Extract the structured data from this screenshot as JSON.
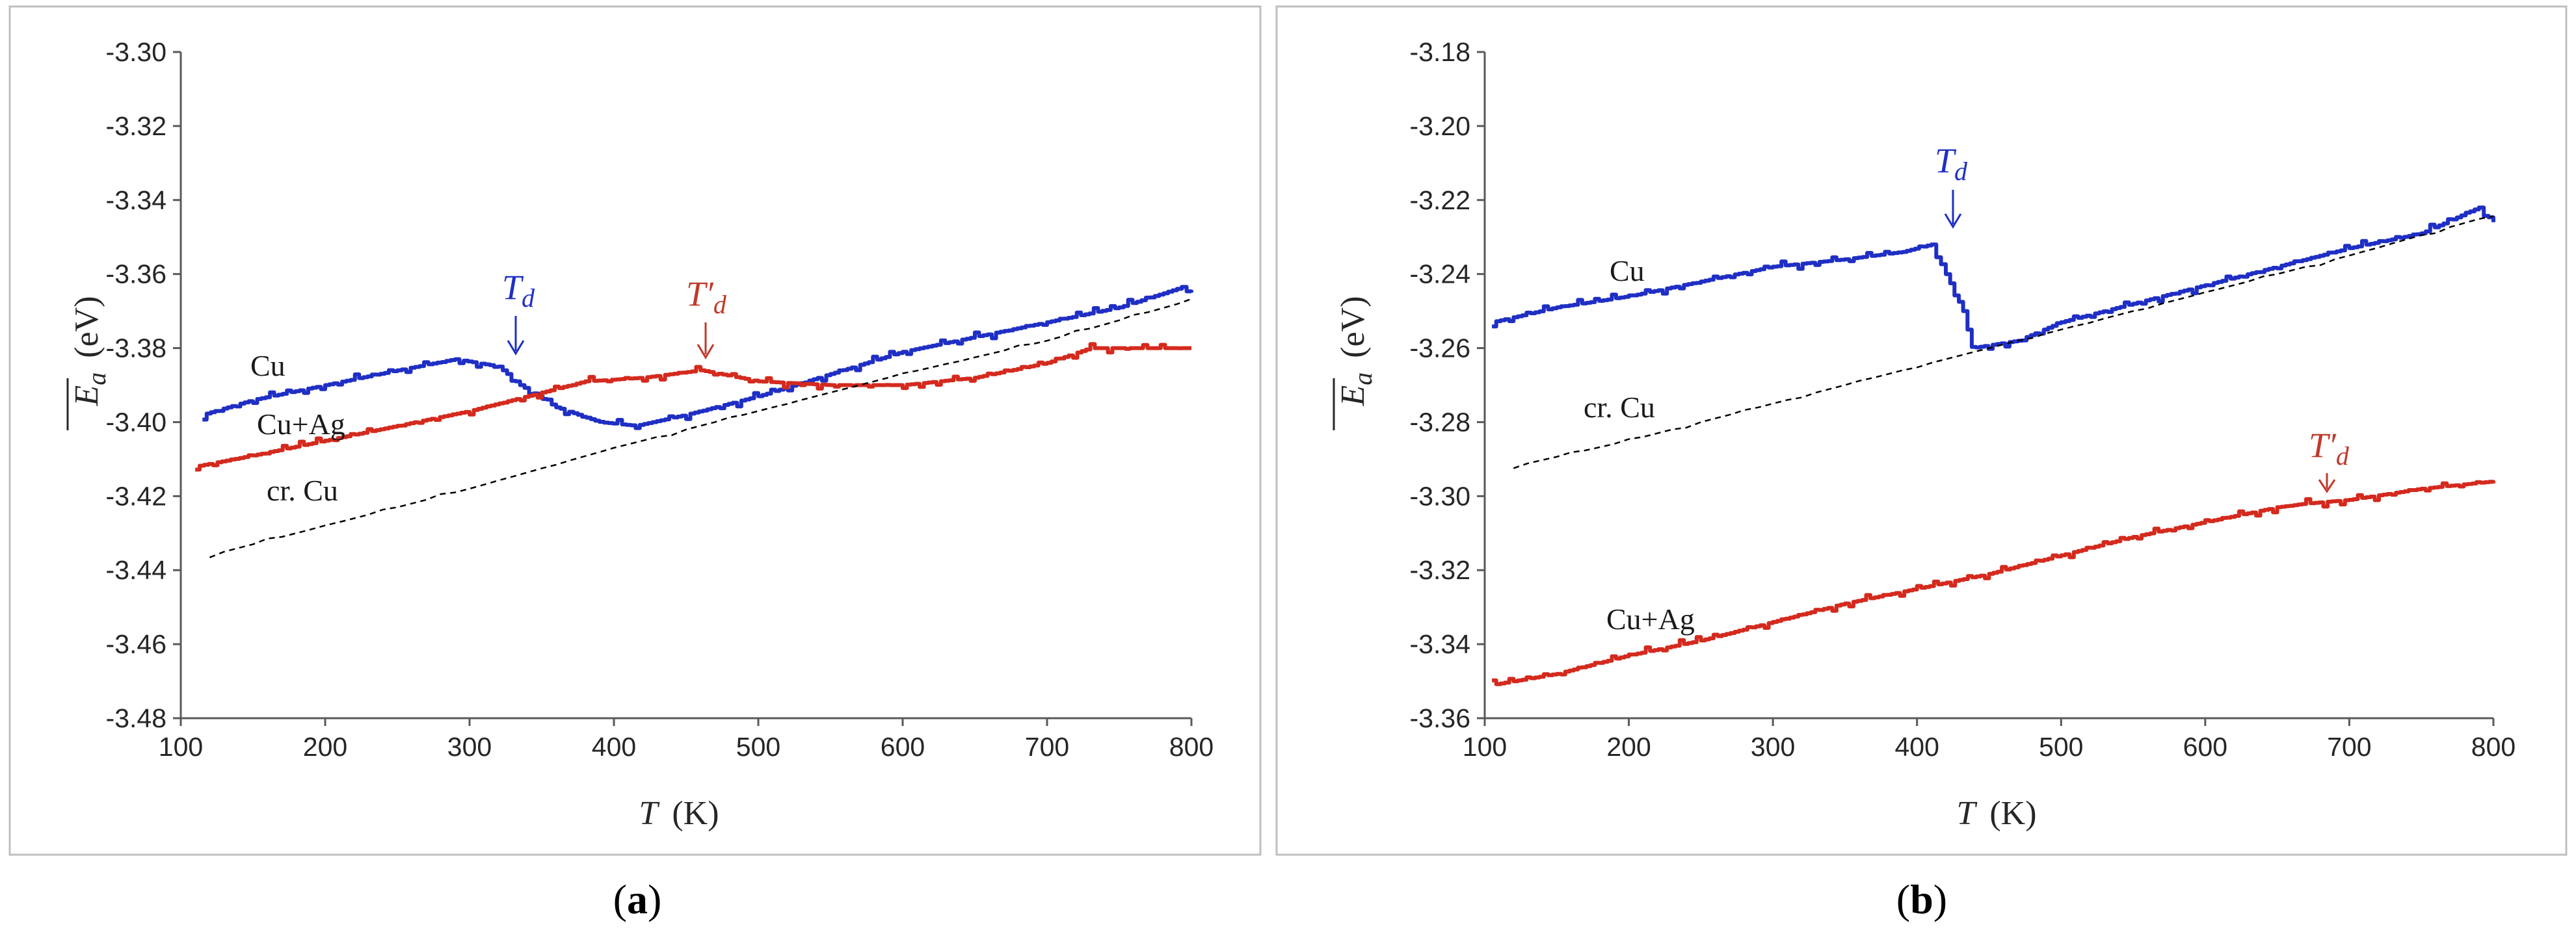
{
  "panels": [
    {
      "id": "a",
      "panel_label": "(a)",
      "panel_letter": "a",
      "xlabel_var": "T",
      "xlabel_unit": "(K)",
      "ylabel_var": "E",
      "ylabel_sub": "a",
      "ylabel_unit": "(eV)",
      "series_labels": {
        "cu": "Cu",
        "cuag": "Cu+Ag",
        "crcu": "cr. Cu"
      },
      "annotations": {
        "td": "T",
        "td_sub": "d",
        "tdp": "T′",
        "tdp_sub": "d"
      }
    },
    {
      "id": "b",
      "panel_label": "(b)",
      "panel_letter": "b",
      "xlabel_var": "T",
      "xlabel_unit": "(K)",
      "ylabel_var": "E",
      "ylabel_sub": "a",
      "ylabel_unit": "(eV)",
      "series_labels": {
        "cu": "Cu",
        "cuag": "Cu+Ag",
        "crcu": "cr. Cu"
      },
      "annotations": {
        "td": "T",
        "td_sub": "d",
        "tdp": "T′",
        "tdp_sub": "d"
      }
    }
  ],
  "chart_data": [
    {
      "type": "line",
      "title": "(a)",
      "xlabel": "T (K)",
      "ylabel": "E_a (eV)",
      "xlim": [
        100,
        800
      ],
      "ylim": [
        -3.48,
        -3.3
      ],
      "xticks": [
        100,
        200,
        300,
        400,
        500,
        600,
        700,
        800
      ],
      "yticks": [
        -3.48,
        -3.46,
        -3.44,
        -3.42,
        -3.4,
        -3.38,
        -3.36,
        -3.34,
        -3.32,
        -3.3
      ],
      "series": [
        {
          "name": "Cu",
          "color": "#1f2fc4",
          "style": "solid",
          "x": [
            115,
            150,
            200,
            250,
            290,
            320,
            335,
            360,
            390,
            415,
            450,
            500,
            550,
            600,
            650,
            700,
            750,
            790,
            800
          ],
          "y": [
            -3.398,
            -3.394,
            -3.39,
            -3.386,
            -3.383,
            -3.385,
            -3.39,
            -3.396,
            -3.4,
            -3.401,
            -3.398,
            -3.393,
            -3.387,
            -3.381,
            -3.377,
            -3.373,
            -3.369,
            -3.364,
            -3.365
          ]
        },
        {
          "name": "Cu+Ag",
          "color": "#d42a1e",
          "style": "solid",
          "x": [
            110,
            150,
            200,
            250,
            300,
            350,
            380,
            420,
            460,
            500,
            550,
            600,
            650,
            700,
            730,
            800
          ],
          "y": [
            -3.412,
            -3.409,
            -3.405,
            -3.401,
            -3.397,
            -3.392,
            -3.389,
            -3.388,
            -3.386,
            -3.389,
            -3.39,
            -3.39,
            -3.388,
            -3.384,
            -3.38,
            -3.38
          ]
        },
        {
          "name": "cr. Cu",
          "color": "#000000",
          "style": "dashed",
          "x": [
            120,
            200,
            300,
            400,
            500,
            600,
            700,
            800
          ],
          "y": [
            -3.436,
            -3.428,
            -3.418,
            -3.407,
            -3.397,
            -3.387,
            -3.378,
            -3.367
          ]
        }
      ],
      "annotations": [
        {
          "label": "T_d",
          "x": 330,
          "y": -3.385,
          "color": "#1f2fc4"
        },
        {
          "label": "T'_d",
          "x": 460,
          "y": -3.386,
          "color": "#c0392b"
        }
      ]
    },
    {
      "type": "line",
      "title": "(b)",
      "xlabel": "T (K)",
      "ylabel": "E_a (eV)",
      "xlim": [
        100,
        800
      ],
      "ylim": [
        -3.36,
        -3.18
      ],
      "xticks": [
        100,
        200,
        300,
        400,
        500,
        600,
        700,
        800
      ],
      "yticks": [
        -3.36,
        -3.34,
        -3.32,
        -3.3,
        -3.28,
        -3.26,
        -3.24,
        -3.22,
        -3.2,
        -3.18
      ],
      "series": [
        {
          "name": "Cu",
          "color": "#1f2fc4",
          "style": "solid",
          "x": [
            105,
            150,
            200,
            250,
            300,
            350,
            390,
            410,
            420,
            432,
            438,
            470,
            500,
            550,
            600,
            650,
            700,
            750,
            790,
            800
          ],
          "y": [
            -3.253,
            -3.249,
            -3.246,
            -3.242,
            -3.238,
            -3.236,
            -3.234,
            -3.232,
            -3.24,
            -3.25,
            -3.26,
            -3.258,
            -3.253,
            -3.248,
            -3.243,
            -3.238,
            -3.233,
            -3.229,
            -3.222,
            -3.226
          ]
        },
        {
          "name": "Cu+Ag",
          "color": "#d42a1e",
          "style": "solid",
          "x": [
            105,
            150,
            200,
            250,
            300,
            350,
            400,
            450,
            500,
            550,
            600,
            650,
            670,
            700,
            750,
            800
          ],
          "y": [
            -3.351,
            -3.348,
            -3.343,
            -3.339,
            -3.334,
            -3.329,
            -3.325,
            -3.321,
            -3.316,
            -3.311,
            -3.307,
            -3.303,
            -3.302,
            -3.301,
            -3.298,
            -3.296
          ]
        },
        {
          "name": "cr. Cu",
          "color": "#000000",
          "style": "dashed",
          "x": [
            120,
            200,
            300,
            400,
            500,
            600,
            700,
            800
          ],
          "y": [
            -3.292,
            -3.285,
            -3.275,
            -3.265,
            -3.255,
            -3.245,
            -3.235,
            -3.224
          ]
        }
      ],
      "annotations": [
        {
          "label": "T_d",
          "x": 413,
          "y": -3.233,
          "color": "#1f2fc4"
        },
        {
          "label": "T'_d",
          "x": 670,
          "y": -3.302,
          "color": "#c0392b"
        }
      ]
    }
  ]
}
